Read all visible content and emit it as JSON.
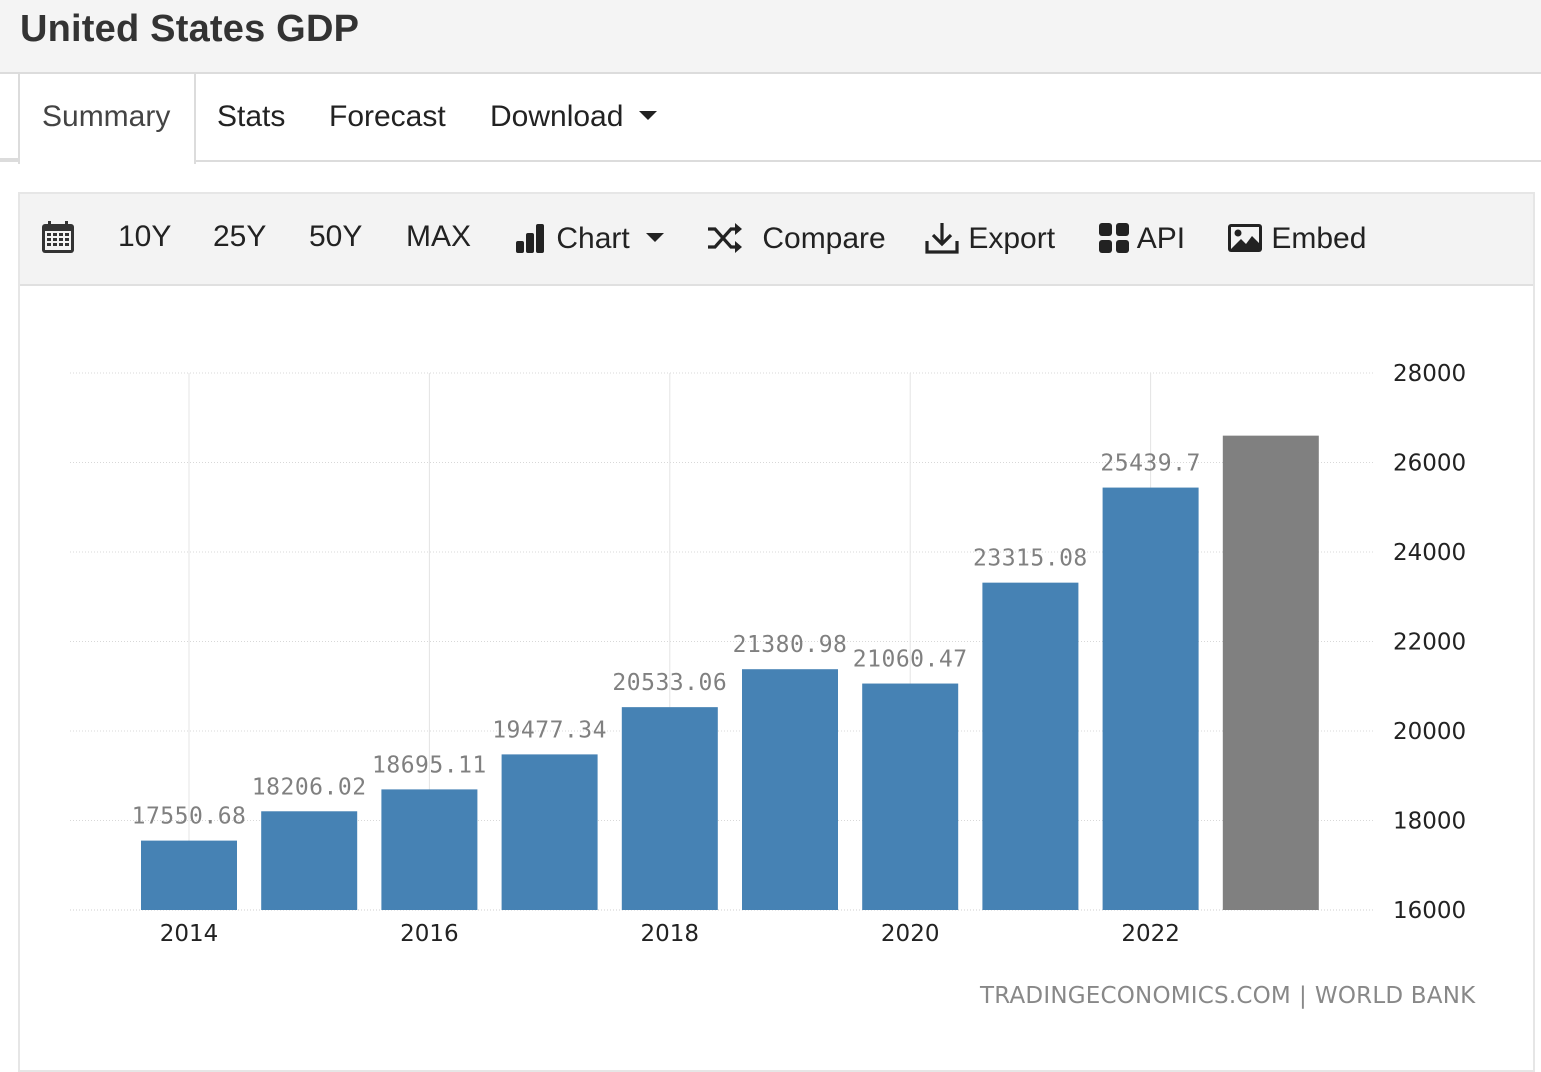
{
  "header": {
    "title": "United States GDP"
  },
  "tabs": [
    {
      "label": "Summary",
      "active": true
    },
    {
      "label": "Stats"
    },
    {
      "label": "Forecast"
    },
    {
      "label": "Download",
      "dropdown": true
    }
  ],
  "toolbar": {
    "calendar_icon": "calendar-icon",
    "ranges": [
      "10Y",
      "25Y",
      "50Y",
      "MAX"
    ],
    "chart_label": "Chart",
    "compare_label": "Compare",
    "export_label": "Export",
    "api_label": "API",
    "embed_label": "Embed"
  },
  "colors": {
    "bar": "#4682b4",
    "forecast_bar": "#808080",
    "label": "#808080"
  },
  "source": {
    "left": "TRADINGECONOMICS.COM",
    "separator": "|",
    "right": "WORLD BANK"
  },
  "chart_data": {
    "type": "bar",
    "categories": [
      "2014",
      "2015",
      "2016",
      "2017",
      "2018",
      "2019",
      "2020",
      "2021",
      "2022",
      "2023"
    ],
    "x_tick_labels": [
      "2014",
      "2016",
      "2018",
      "2020",
      "2022"
    ],
    "values": [
      17550.68,
      18206.02,
      18695.11,
      19477.34,
      20533.06,
      21380.98,
      21060.47,
      23315.08,
      25439.7,
      26600
    ],
    "value_labels": [
      "17550.68",
      "18206.02",
      "18695.11",
      "19477.34",
      "20533.06",
      "21380.98",
      "21060.47",
      "23315.08",
      "25439.7",
      ""
    ],
    "forecast": [
      false,
      false,
      false,
      false,
      false,
      false,
      false,
      false,
      false,
      true
    ],
    "ylim": [
      16000,
      28000
    ],
    "y_ticks": [
      16000,
      18000,
      20000,
      22000,
      24000,
      26000,
      28000
    ],
    "y_axis_position": "right",
    "grid": true,
    "title": "",
    "xlabel": "",
    "ylabel": ""
  }
}
